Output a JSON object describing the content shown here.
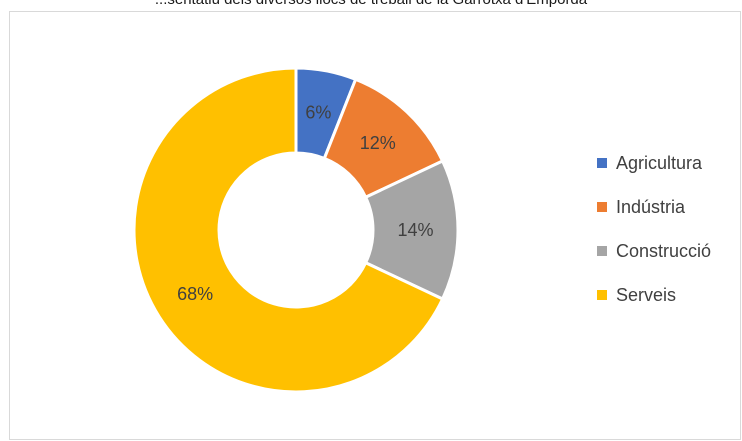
{
  "chart_data": {
    "type": "pie",
    "variant": "doughnut",
    "title": "...sentatiu dels diversos llocs de treball de la Garrotxa d'Empordà",
    "categories": [
      "Agricultura",
      "Indústria",
      "Construcció",
      "Serveis"
    ],
    "values": [
      6,
      12,
      14,
      68
    ],
    "labels": [
      "6%",
      "12%",
      "14%",
      "68%"
    ],
    "colors": [
      "#4472C4",
      "#ED7D31",
      "#A5A5A5",
      "#FFC000"
    ],
    "legend_position": "right"
  }
}
